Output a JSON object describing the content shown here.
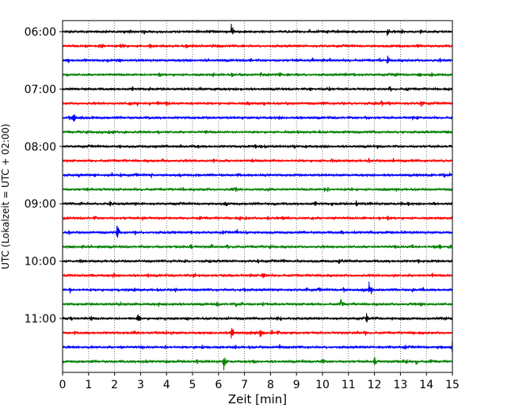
{
  "chart_data": {
    "type": "line",
    "title": "",
    "xlabel": "Zeit  [min]",
    "ylabel": "UTC (Lokalzeit = UTC + 02:00)",
    "xlim": [
      0,
      15
    ],
    "x_ticks": [
      "0",
      "1",
      "2",
      "3",
      "4",
      "5",
      "6",
      "7",
      "8",
      "9",
      "10",
      "11",
      "12",
      "13",
      "14",
      "15"
    ],
    "y_ticks": [
      "06:00",
      "07:00",
      "08:00",
      "09:00",
      "10:00",
      "11:00"
    ],
    "grid": "vertical dotted at each minute",
    "trace_colors": [
      "#000000",
      "#ff0000",
      "#0000ff",
      "#008000"
    ],
    "trace_start_times": [
      "06:00",
      "06:15",
      "06:30",
      "06:45",
      "07:00",
      "07:15",
      "07:30",
      "07:45",
      "08:00",
      "08:15",
      "08:30",
      "08:45",
      "09:00",
      "09:15",
      "09:30",
      "09:45",
      "10:00",
      "10:15",
      "10:30",
      "10:45",
      "11:00",
      "11:15",
      "11:30",
      "11:45"
    ],
    "events": [
      {
        "trace": "06:00",
        "minute": 6.5,
        "amp": 1.0
      },
      {
        "trace": "06:00",
        "minute": 12.5,
        "amp": 0.45
      },
      {
        "trace": "06:15",
        "minute": 1.5,
        "amp": 0.55
      },
      {
        "trace": "06:30",
        "minute": 12.5,
        "amp": 0.6
      },
      {
        "trace": "06:45",
        "minute": 13.7,
        "amp": 0.55
      },
      {
        "trace": "07:15",
        "minute": 13.8,
        "amp": 0.6
      },
      {
        "trace": "07:15",
        "minute": 10.0,
        "amp": 0.4
      },
      {
        "trace": "07:30",
        "minute": 0.4,
        "amp": 1.0
      },
      {
        "trace": "08:30",
        "minute": 3.4,
        "amp": 0.45
      },
      {
        "trace": "09:00",
        "minute": 11.3,
        "amp": 0.55
      },
      {
        "trace": "09:00",
        "minute": 9.7,
        "amp": 0.45
      },
      {
        "trace": "09:30",
        "minute": 2.1,
        "amp": 1.0
      },
      {
        "trace": "09:45",
        "minute": 14.5,
        "amp": 0.4
      },
      {
        "trace": "10:00",
        "minute": 8.5,
        "amp": 0.35
      },
      {
        "trace": "10:15",
        "minute": 7.7,
        "amp": 0.75
      },
      {
        "trace": "10:30",
        "minute": 11.8,
        "amp": 1.0
      },
      {
        "trace": "10:45",
        "minute": 10.7,
        "amp": 0.6
      },
      {
        "trace": "11:00",
        "minute": 2.9,
        "amp": 0.7
      },
      {
        "trace": "11:00",
        "minute": 11.7,
        "amp": 0.6
      },
      {
        "trace": "11:00",
        "minute": 1.1,
        "amp": 0.45
      },
      {
        "trace": "11:15",
        "minute": 6.5,
        "amp": 0.9
      },
      {
        "trace": "11:15",
        "minute": 7.6,
        "amp": 0.6
      },
      {
        "trace": "11:30",
        "minute": 15.0,
        "amp": 1.0
      },
      {
        "trace": "11:45",
        "minute": 6.2,
        "amp": 0.9
      },
      {
        "trace": "11:45",
        "minute": 12.0,
        "amp": 0.6
      },
      {
        "trace": "11:45",
        "minute": 13.6,
        "amp": 0.5
      }
    ]
  }
}
